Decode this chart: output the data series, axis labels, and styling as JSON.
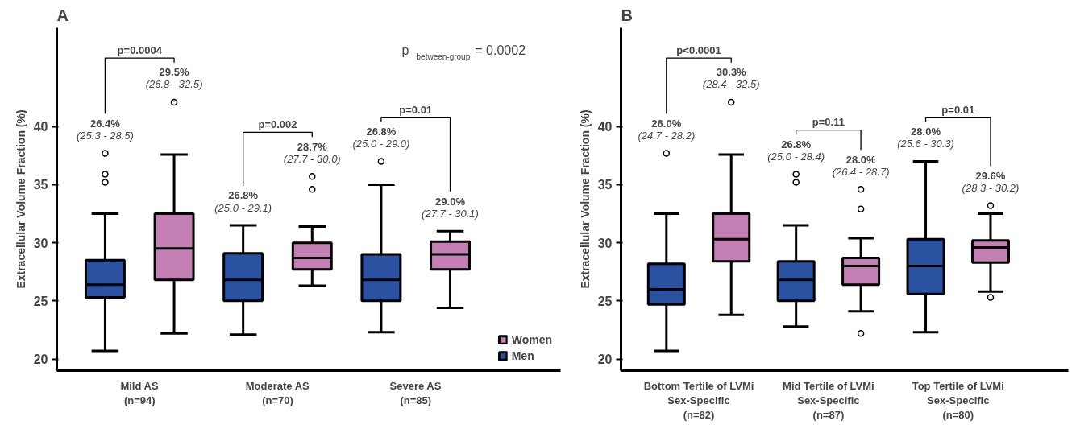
{
  "chart_data": [
    {
      "type": "box",
      "title": "A",
      "ylabel": "Extracellular Volume Fraction (%)",
      "categories": [
        "Mild AS\n(n=94)",
        "Moderate AS\n(n=70)",
        "Severe AS\n(n=85)"
      ],
      "ylim": [
        19,
        48.5
      ],
      "yticks": [
        20,
        25,
        30,
        35,
        40
      ],
      "grid": false,
      "legend": "bottom right",
      "series": [
        {
          "name": "Men",
          "color": "#2a52a0",
          "value_labels": [
            "26.4%\n(25.3 - 28.5)",
            "26.8%\n(25.0 - 29.1)",
            "26.8%\n(25.0 - 29.0)"
          ],
          "boxes": [
            {
              "low": 20.7,
              "q1": 25.3,
              "median": 26.4,
              "q3": 28.5,
              "high": 32.5,
              "outliers": [
                35.2,
                35.9,
                37.7
              ]
            },
            {
              "low": 22.1,
              "q1": 25.0,
              "median": 26.8,
              "q3": 29.1,
              "high": 31.5
            },
            {
              "low": 22.3,
              "q1": 25.0,
              "median": 26.8,
              "q3": 29.0,
              "high": 35.0,
              "outliers": [
                37.0
              ]
            }
          ]
        },
        {
          "name": "Women",
          "color": "#c47fb5",
          "value_labels": [
            "29.5%\n(26.8 - 32.5)",
            "28.7%\n(27.7 - 30.0)",
            "29.0%\n(27.7 - 30.1)"
          ],
          "boxes": [
            {
              "low": 22.2,
              "q1": 26.8,
              "median": 29.5,
              "q3": 32.5,
              "high": 37.6,
              "outliers": [
                42.1
              ]
            },
            {
              "low": 26.3,
              "q1": 27.7,
              "median": 28.7,
              "q3": 30.0,
              "high": 31.4,
              "outliers": [
                34.6,
                35.7
              ]
            },
            {
              "low": 24.4,
              "q1": 27.7,
              "median": 29.0,
              "q3": 30.1,
              "high": 31.0
            }
          ]
        }
      ],
      "annotations": [
        "p=0.0004",
        "p=0.002",
        "p=0.01",
        "p $_{between-group}$ = 0.0002"
      ]
    },
    {
      "type": "box",
      "title": "B",
      "ylabel": "Extracellular Volume Fraction (%)",
      "categories": [
        "Bottom Tertile of LVMi\nSex-Specific\n(n=82)",
        "Mid Tertile of LVMi\nSex-Specific\n(n=87)",
        "Top Tertile of LVMi\nSex-Specific\n(n=80)"
      ],
      "ylim": [
        19,
        48.5
      ],
      "yticks": [
        20,
        25,
        30,
        35,
        40
      ],
      "grid": false,
      "series": [
        {
          "color": "#2a52a0",
          "value_labels": [
            "26.0%\n(24.7 - 28.2)",
            "26.8%\n(25.0 - 28.4)",
            "28.0%\n(25.6 - 30.3)"
          ],
          "boxes": [
            {
              "low": 20.7,
              "q1": 24.7,
              "median": 26.0,
              "q3": 28.2,
              "high": 32.5,
              "outliers": [
                37.7
              ]
            },
            {
              "low": 22.8,
              "q1": 25.0,
              "median": 26.8,
              "q3": 28.4,
              "high": 31.5,
              "outliers": [
                35.2,
                35.9
              ]
            },
            {
              "low": 22.3,
              "q1": 25.6,
              "median": 28.0,
              "q3": 30.3,
              "high": 37.0
            }
          ]
        },
        {
          "color": "#c47fb5",
          "value_labels": [
            "30.3%\n(28.4 - 32.5)",
            "28.0%\n(26.4 - 28.7)",
            "29.6%\n(28.3 - 30.2)"
          ],
          "boxes": [
            {
              "low": 23.8,
              "q1": 28.4,
              "median": 30.3,
              "q3": 32.5,
              "high": 37.6,
              "outliers": [
                42.1
              ]
            },
            {
              "low": 24.1,
              "q1": 26.4,
              "median": 28.0,
              "q3": 28.7,
              "high": 30.4,
              "outliers": [
                22.2,
                32.9,
                34.6
              ]
            },
            {
              "low": 25.8,
              "q1": 28.3,
              "median": 29.6,
              "q3": 30.2,
              "high": 32.5,
              "outliers": [
                25.3,
                33.2
              ]
            }
          ]
        }
      ],
      "annotations": [
        "p<0.0001",
        "p=0.11",
        "p=0.01"
      ]
    }
  ]
}
